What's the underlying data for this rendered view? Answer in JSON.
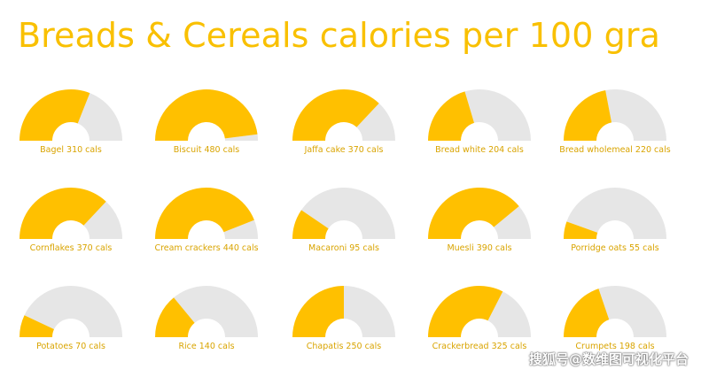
{
  "chart_data": {
    "type": "gauge",
    "title": "Breads & Cereals calories per 100 gra",
    "max_value": 500,
    "unit": "cals",
    "colors": {
      "fill": "#FFC000",
      "track": "#E6E6E6",
      "title": "#F9C000",
      "label": "#D9A400"
    },
    "items": [
      {
        "name": "Bagel",
        "value": 310,
        "label": "Bagel 310 cals"
      },
      {
        "name": "Biscuit",
        "value": 480,
        "label": "Biscuit 480 cals"
      },
      {
        "name": "Jaffa cake",
        "value": 370,
        "label": "Jaffa cake 370 cals"
      },
      {
        "name": "Bread white",
        "value": 204,
        "label": "Bread white 204 cals"
      },
      {
        "name": "Bread wholemeal",
        "value": 220,
        "label": "Bread wholemeal 220 cals"
      },
      {
        "name": "Cornflakes",
        "value": 370,
        "label": "Cornflakes 370 cals"
      },
      {
        "name": "Cream crackers",
        "value": 440,
        "label": "Cream crackers 440 cals"
      },
      {
        "name": "Macaroni",
        "value": 95,
        "label": "Macaroni 95 cals"
      },
      {
        "name": "Muesli",
        "value": 390,
        "label": "Muesli 390 cals"
      },
      {
        "name": "Porridge oats",
        "value": 55,
        "label": "Porridge oats 55 cals"
      },
      {
        "name": "Potatoes",
        "value": 70,
        "label": "Potatoes 70 cals"
      },
      {
        "name": "Rice",
        "value": 140,
        "label": "Rice 140 cals"
      },
      {
        "name": "Chapatis",
        "value": 250,
        "label": "Chapatis 250 cals"
      },
      {
        "name": "Crackerbread",
        "value": 325,
        "label": "Crackerbread 325 cals"
      },
      {
        "name": "Crumpets",
        "value": 198,
        "label": "Crumpets 198 cals"
      }
    ]
  },
  "watermark": "搜狐号@数维图可视化平台"
}
